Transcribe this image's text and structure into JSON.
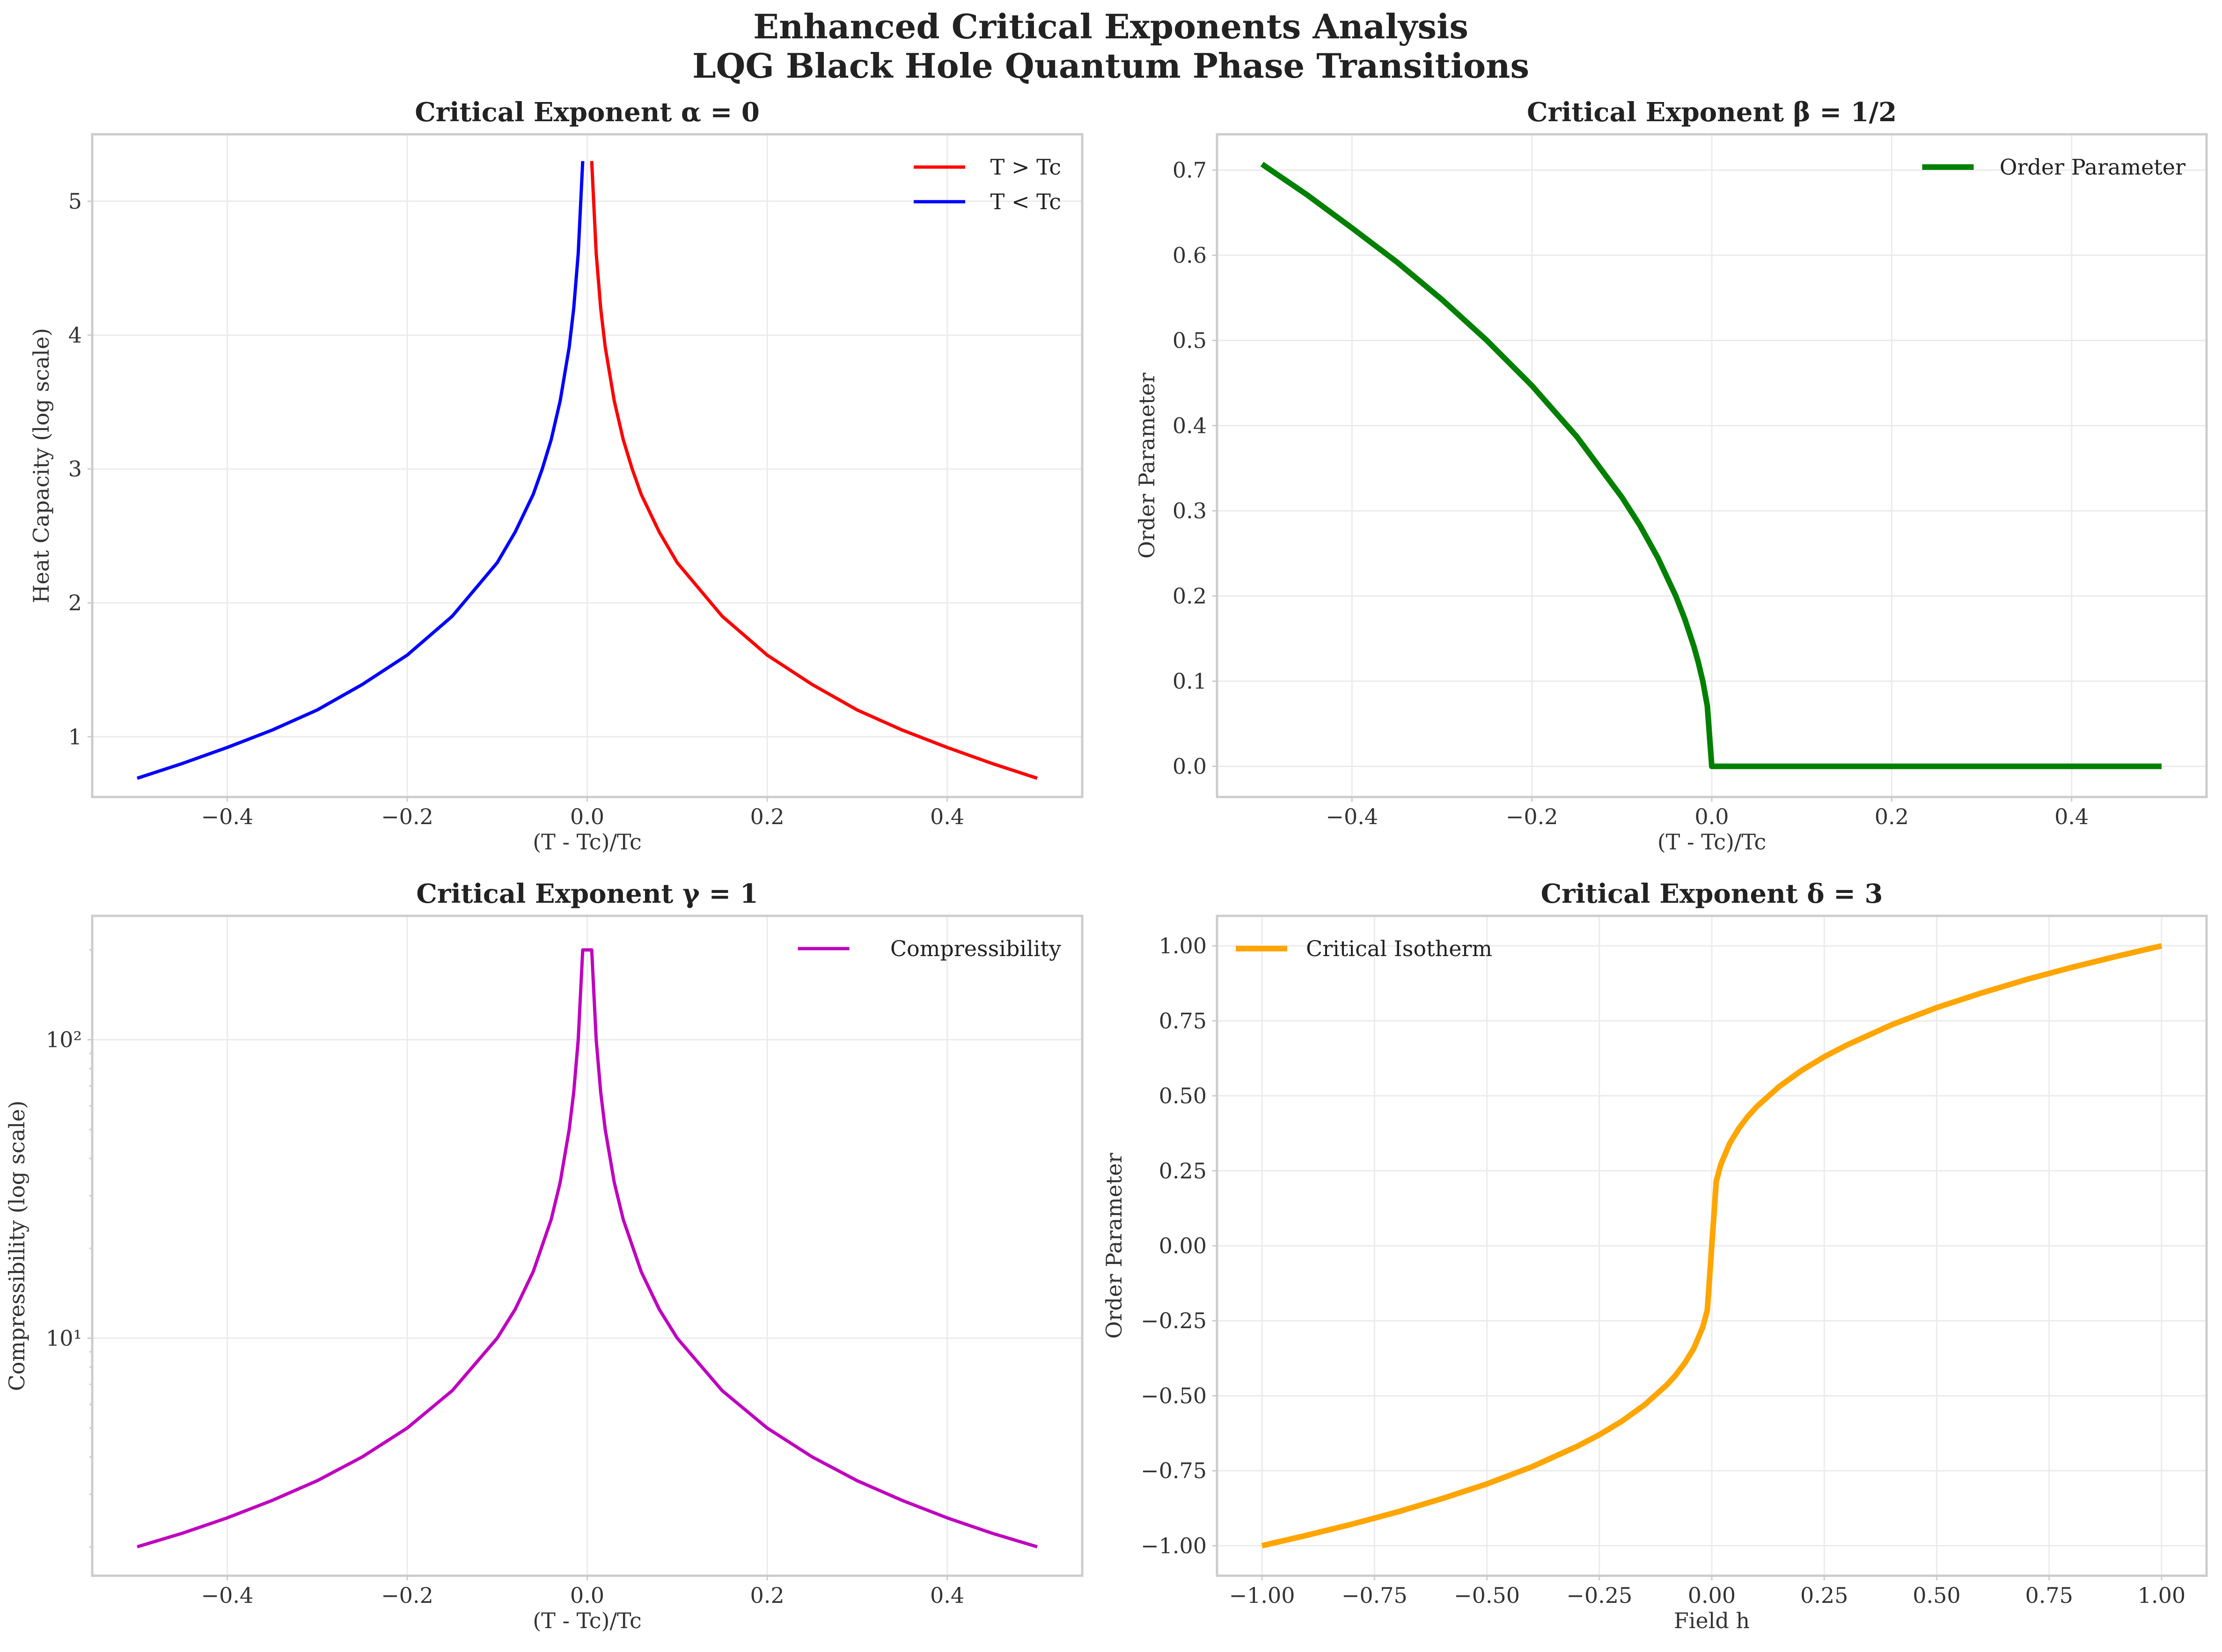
{
  "suptitle_line1": "Enhanced Critical Exponents Analysis",
  "suptitle_line2": "LQG Black Hole Quantum Phase Transitions",
  "chart_data": [
    {
      "type": "line",
      "title": "Critical Exponent α = 0",
      "xlabel": "(T - Tc)/Tc",
      "ylabel": "Heat Capacity (log scale)",
      "xlim": [
        -0.55,
        0.55
      ],
      "ylim": [
        0.55,
        5.5
      ],
      "xticks": [
        -0.4,
        -0.2,
        0.0,
        0.2,
        0.4
      ],
      "xticklabels": [
        "−0.4",
        "−0.2",
        "0.0",
        "0.2",
        "0.4"
      ],
      "yticks": [
        1,
        2,
        3,
        4,
        5
      ],
      "yticklabels": [
        "1",
        "2",
        "3",
        "4",
        "5"
      ],
      "legend": "top-right",
      "grid": true,
      "series": [
        {
          "name": "T > Tc",
          "color": "#ff0000",
          "x": [
            0.005,
            0.01,
            0.015,
            0.02,
            0.03,
            0.04,
            0.05,
            0.06,
            0.08,
            0.1,
            0.15,
            0.2,
            0.25,
            0.3,
            0.35,
            0.4,
            0.45,
            0.5
          ],
          "y": [
            5.3,
            4.61,
            4.2,
            3.91,
            3.51,
            3.22,
            3.0,
            2.81,
            2.53,
            2.3,
            1.9,
            1.61,
            1.39,
            1.2,
            1.05,
            0.92,
            0.8,
            0.69
          ]
        },
        {
          "name": "T < Tc",
          "color": "#0000ff",
          "x": [
            -0.5,
            -0.45,
            -0.4,
            -0.35,
            -0.3,
            -0.25,
            -0.2,
            -0.15,
            -0.1,
            -0.08,
            -0.06,
            -0.05,
            -0.04,
            -0.03,
            -0.02,
            -0.015,
            -0.01,
            -0.005
          ],
          "y": [
            0.69,
            0.8,
            0.92,
            1.05,
            1.2,
            1.39,
            1.61,
            1.9,
            2.3,
            2.53,
            2.81,
            3.0,
            3.22,
            3.51,
            3.91,
            4.2,
            4.61,
            5.3
          ]
        }
      ]
    },
    {
      "type": "line",
      "title": "Critical Exponent β = 1/2",
      "xlabel": "(T - Tc)/Tc",
      "ylabel": "Order Parameter",
      "xlim": [
        -0.55,
        0.55
      ],
      "ylim": [
        -0.036,
        0.742
      ],
      "xticks": [
        -0.4,
        -0.2,
        0.0,
        0.2,
        0.4
      ],
      "xticklabels": [
        "−0.4",
        "−0.2",
        "0.0",
        "0.2",
        "0.4"
      ],
      "yticks": [
        0.0,
        0.1,
        0.2,
        0.3,
        0.4,
        0.5,
        0.6,
        0.7
      ],
      "yticklabels": [
        "0.0",
        "0.1",
        "0.2",
        "0.3",
        "0.4",
        "0.5",
        "0.6",
        "0.7"
      ],
      "legend": "top-right",
      "grid": true,
      "series": [
        {
          "name": "Order Parameter",
          "color": "#008000",
          "x": [
            -0.5,
            -0.45,
            -0.4,
            -0.35,
            -0.3,
            -0.25,
            -0.2,
            -0.15,
            -0.1,
            -0.08,
            -0.06,
            -0.04,
            -0.03,
            -0.02,
            -0.015,
            -0.01,
            -0.005,
            0.0,
            0.005,
            0.1,
            0.2,
            0.3,
            0.4,
            0.5
          ],
          "y": [
            0.707,
            0.671,
            0.632,
            0.592,
            0.548,
            0.5,
            0.447,
            0.387,
            0.316,
            0.283,
            0.245,
            0.2,
            0.173,
            0.141,
            0.122,
            0.1,
            0.071,
            0.0,
            0.0,
            0.0,
            0.0,
            0.0,
            0.0,
            0.0
          ]
        }
      ]
    },
    {
      "type": "line",
      "title": "Critical Exponent γ = 1",
      "xlabel": "(T - Tc)/Tc",
      "ylabel": "Compressibility (log scale)",
      "xlim": [
        -0.55,
        0.55
      ],
      "ylim": [
        1.6,
        260
      ],
      "yscale": "log",
      "xticks": [
        -0.4,
        -0.2,
        0.0,
        0.2,
        0.4
      ],
      "xticklabels": [
        "−0.4",
        "−0.2",
        "0.0",
        "0.2",
        "0.4"
      ],
      "yticks": [
        10,
        100
      ],
      "yticklabels": [
        "10¹",
        "10²"
      ],
      "legend": "top-right",
      "grid": true,
      "series": [
        {
          "name": "Compressibility",
          "color": "#bf00bf",
          "x": [
            -0.5,
            -0.45,
            -0.4,
            -0.35,
            -0.3,
            -0.25,
            -0.2,
            -0.15,
            -0.1,
            -0.08,
            -0.06,
            -0.04,
            -0.03,
            -0.02,
            -0.015,
            -0.01,
            -0.005,
            0.005,
            0.01,
            0.015,
            0.02,
            0.03,
            0.04,
            0.06,
            0.08,
            0.1,
            0.15,
            0.2,
            0.25,
            0.3,
            0.35,
            0.4,
            0.45,
            0.5
          ],
          "y": [
            2.0,
            2.22,
            2.5,
            2.86,
            3.33,
            4.0,
            5.0,
            6.67,
            10.0,
            12.5,
            16.7,
            25.0,
            33.3,
            50.0,
            66.7,
            100,
            200,
            200,
            100,
            66.7,
            50.0,
            33.3,
            25.0,
            16.7,
            12.5,
            10.0,
            6.67,
            5.0,
            4.0,
            3.33,
            2.86,
            2.5,
            2.22,
            2.0
          ]
        }
      ]
    },
    {
      "type": "line",
      "title": "Critical Exponent δ = 3",
      "xlabel": "Field h",
      "ylabel": "Order Parameter",
      "xlim": [
        -1.1,
        1.1
      ],
      "ylim": [
        -1.1,
        1.1
      ],
      "xticks": [
        -1.0,
        -0.75,
        -0.5,
        -0.25,
        0.0,
        0.25,
        0.5,
        0.75,
        1.0
      ],
      "xticklabels": [
        "−1.00",
        "−0.75",
        "−0.50",
        "−0.25",
        "0.00",
        "0.25",
        "0.50",
        "0.75",
        "1.00"
      ],
      "yticks": [
        -1.0,
        -0.75,
        -0.5,
        -0.25,
        0.0,
        0.25,
        0.5,
        0.75,
        1.0
      ],
      "yticklabels": [
        "−1.00",
        "−0.75",
        "−0.50",
        "−0.25",
        "0.00",
        "0.25",
        "0.50",
        "0.75",
        "1.00"
      ],
      "legend": "top-left",
      "grid": true,
      "series": [
        {
          "name": "Critical Isotherm",
          "color": "#ffa500",
          "x": [
            -1.0,
            -0.9,
            -0.8,
            -0.7,
            -0.6,
            -0.5,
            -0.4,
            -0.3,
            -0.25,
            -0.2,
            -0.15,
            -0.1,
            -0.08,
            -0.06,
            -0.04,
            -0.02,
            -0.01,
            0.01,
            0.02,
            0.04,
            0.06,
            0.08,
            0.1,
            0.15,
            0.2,
            0.25,
            0.3,
            0.4,
            0.5,
            0.6,
            0.7,
            0.8,
            0.9,
            1.0
          ],
          "y": [
            -1.0,
            -0.965,
            -0.928,
            -0.888,
            -0.843,
            -0.794,
            -0.737,
            -0.669,
            -0.63,
            -0.585,
            -0.531,
            -0.464,
            -0.431,
            -0.391,
            -0.342,
            -0.271,
            -0.215,
            0.215,
            0.271,
            0.342,
            0.391,
            0.431,
            0.464,
            0.531,
            0.585,
            0.63,
            0.669,
            0.737,
            0.794,
            0.843,
            0.888,
            0.928,
            0.965,
            1.0
          ]
        }
      ]
    }
  ]
}
